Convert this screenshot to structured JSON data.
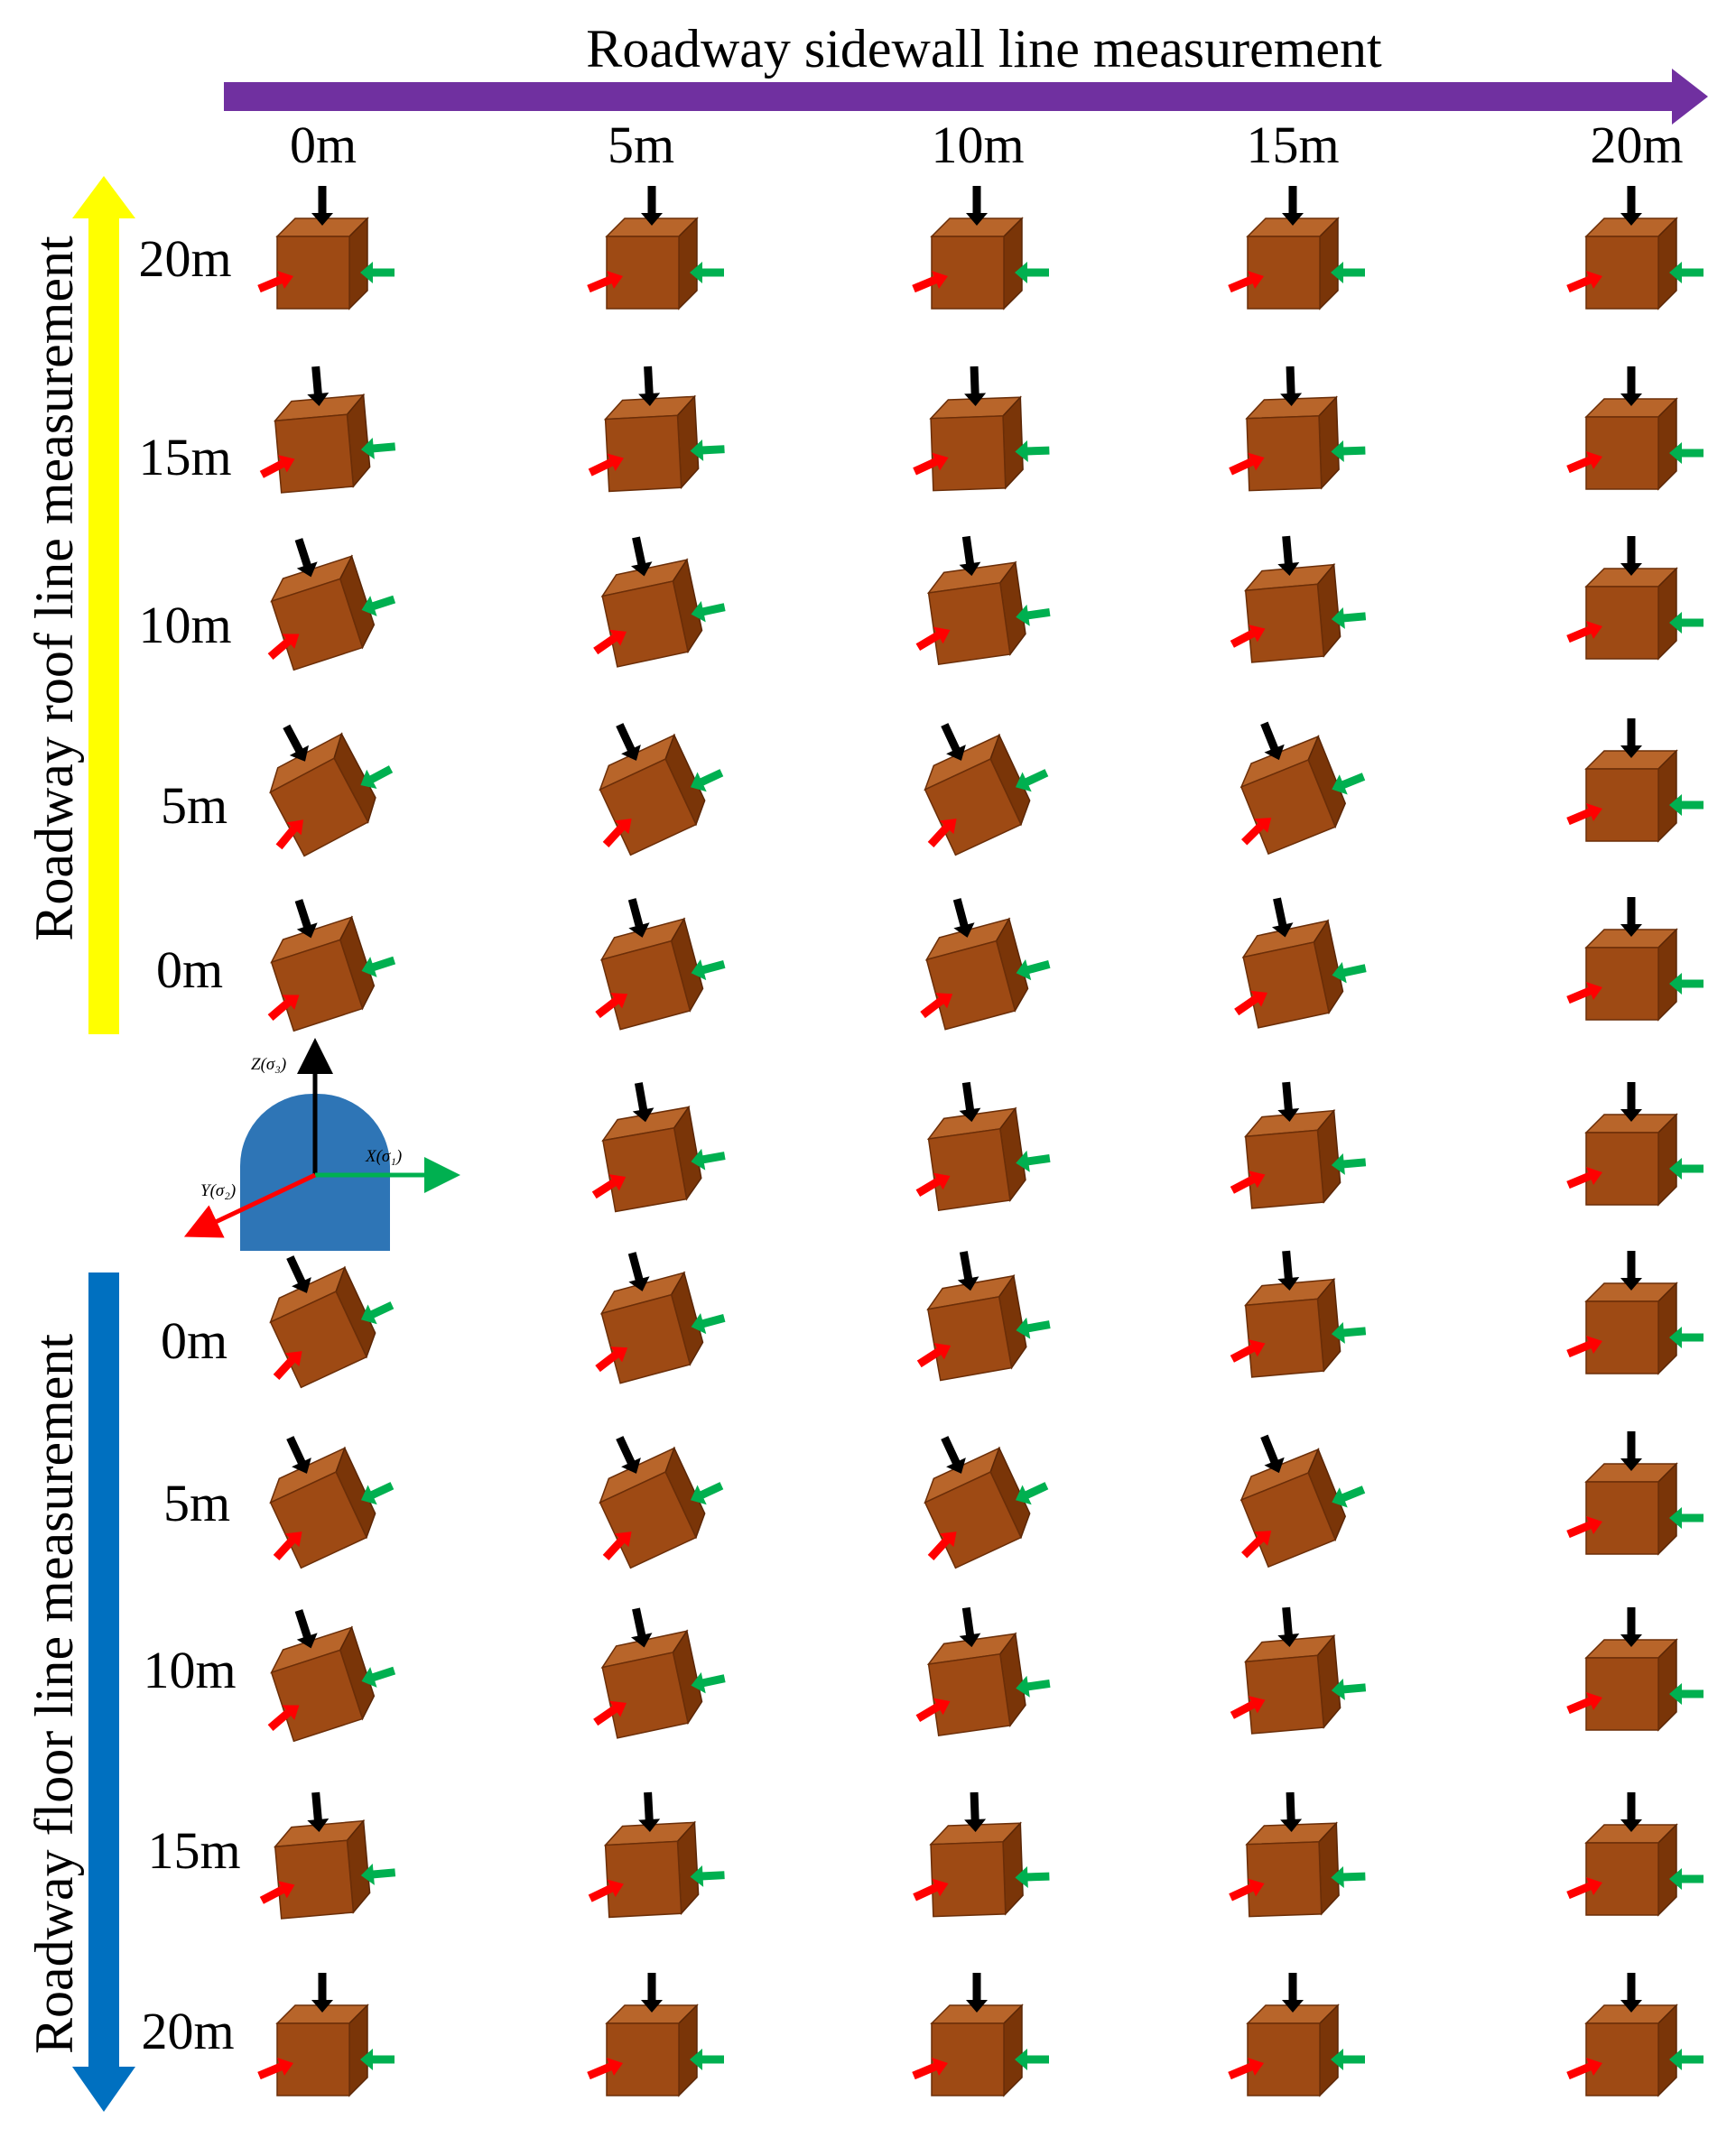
{
  "figure": {
    "top_title": "Roadway sidewall line measurement",
    "roof_title": "Roadway roof line measurement",
    "floor_title": "Roadway floor line measurement",
    "column_labels": [
      "0m",
      "5m",
      "10m",
      "15m",
      "20m"
    ],
    "roof_row_labels": [
      "20m",
      "15m",
      "10m",
      "5m",
      "0m"
    ],
    "floor_row_labels": [
      "0m",
      "5m",
      "10m",
      "15m",
      "20m"
    ],
    "axis_labels": {
      "z": "Z(σ₃)",
      "x": "X(σ₁)",
      "y": "Y(σ₂)"
    }
  },
  "colors": {
    "sidewall_arrow": "#7030A0",
    "roof_arrow": "#FFFF00",
    "floor_arrow": "#0070C0",
    "cube_front": "#9E4A14",
    "cube_top": "#B8652A",
    "cube_side": "#7A3508",
    "stress_vertical": "#000000",
    "stress_horizontal_x": "#00B050",
    "stress_horizontal_y": "#FF0000",
    "tunnel": "#2E75B6"
  },
  "cube_tilts_deg": [
    [
      0,
      0,
      0,
      0,
      0
    ],
    [
      -5,
      -3,
      -2,
      -2,
      0
    ],
    [
      -18,
      -12,
      -8,
      -5,
      0
    ],
    [
      -28,
      -25,
      -25,
      -22,
      0
    ],
    [
      -18,
      -15,
      -15,
      -12,
      0
    ],
    [
      null,
      -10,
      -8,
      -5,
      0
    ],
    [
      -25,
      -15,
      -10,
      -5,
      0
    ],
    [
      -25,
      -25,
      -25,
      -22,
      0
    ],
    [
      -18,
      -12,
      -8,
      -5,
      0
    ],
    [
      -5,
      -3,
      -2,
      -2,
      0
    ],
    [
      0,
      0,
      0,
      0,
      0
    ]
  ]
}
